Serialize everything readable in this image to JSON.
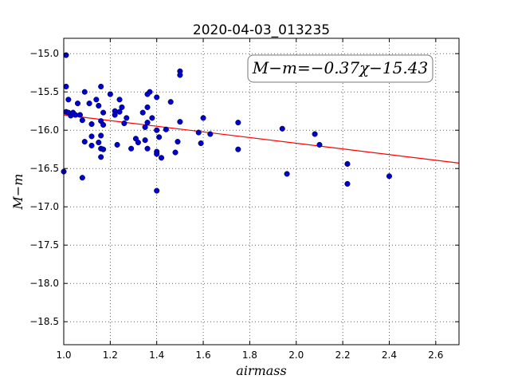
{
  "chart_data": {
    "type": "scatter",
    "title": "2020-04-03_013235",
    "xlabel": "airmass",
    "ylabel": "M−m",
    "xlim": [
      1.0,
      2.7
    ],
    "ylim": [
      -18.8,
      -14.8
    ],
    "y_inverted": true,
    "grid": true,
    "x_ticks": [
      1.0,
      1.2,
      1.4,
      1.6,
      1.8,
      2.0,
      2.2,
      2.4,
      2.6
    ],
    "x_tick_labels": [
      "1.0",
      "1.2",
      "1.4",
      "1.6",
      "1.8",
      "2.0",
      "2.2",
      "2.4",
      "2.6"
    ],
    "y_ticks": [
      -15.0,
      -15.5,
      -16.0,
      -16.5,
      -17.0,
      -17.5,
      -18.0,
      -18.5
    ],
    "y_tick_labels": [
      "−15.0",
      "−15.5",
      "−16.0",
      "−16.5",
      "−17.0",
      "−17.5",
      "−18.0",
      "−18.5"
    ],
    "annotation": "M−m=−0.37χ−15.43",
    "fit": {
      "slope": -0.37,
      "intercept": -15.43,
      "color": "#ff0000"
    },
    "point_color": "#0000cc",
    "points": [
      {
        "x": 1.0,
        "y": -16.54
      },
      {
        "x": 1.01,
        "y": -15.76
      },
      {
        "x": 1.01,
        "y": -15.43
      },
      {
        "x": 1.01,
        "y": -15.02
      },
      {
        "x": 1.02,
        "y": -15.6
      },
      {
        "x": 1.02,
        "y": -15.77
      },
      {
        "x": 1.03,
        "y": -15.81
      },
      {
        "x": 1.04,
        "y": -15.77
      },
      {
        "x": 1.05,
        "y": -15.8
      },
      {
        "x": 1.06,
        "y": -15.65
      },
      {
        "x": 1.07,
        "y": -15.8
      },
      {
        "x": 1.08,
        "y": -15.87
      },
      {
        "x": 1.08,
        "y": -16.62
      },
      {
        "x": 1.09,
        "y": -15.5
      },
      {
        "x": 1.09,
        "y": -16.15
      },
      {
        "x": 1.11,
        "y": -15.65
      },
      {
        "x": 1.12,
        "y": -15.92
      },
      {
        "x": 1.12,
        "y": -16.08
      },
      {
        "x": 1.12,
        "y": -16.2
      },
      {
        "x": 1.14,
        "y": -15.6
      },
      {
        "x": 1.15,
        "y": -15.68
      },
      {
        "x": 1.15,
        "y": -16.16
      },
      {
        "x": 1.16,
        "y": -16.35
      },
      {
        "x": 1.16,
        "y": -15.43
      },
      {
        "x": 1.16,
        "y": -15.88
      },
      {
        "x": 1.16,
        "y": -16.07
      },
      {
        "x": 1.16,
        "y": -16.24
      },
      {
        "x": 1.17,
        "y": -15.93
      },
      {
        "x": 1.17,
        "y": -16.25
      },
      {
        "x": 1.17,
        "y": -15.77
      },
      {
        "x": 1.2,
        "y": -15.53
      },
      {
        "x": 1.22,
        "y": -15.75
      },
      {
        "x": 1.22,
        "y": -15.8
      },
      {
        "x": 1.23,
        "y": -16.19
      },
      {
        "x": 1.24,
        "y": -15.6
      },
      {
        "x": 1.24,
        "y": -15.76
      },
      {
        "x": 1.25,
        "y": -15.7
      },
      {
        "x": 1.26,
        "y": -15.91
      },
      {
        "x": 1.27,
        "y": -15.84
      },
      {
        "x": 1.29,
        "y": -16.24
      },
      {
        "x": 1.31,
        "y": -16.11
      },
      {
        "x": 1.32,
        "y": -16.16
      },
      {
        "x": 1.34,
        "y": -15.77
      },
      {
        "x": 1.35,
        "y": -15.96
      },
      {
        "x": 1.35,
        "y": -16.13
      },
      {
        "x": 1.36,
        "y": -15.53
      },
      {
        "x": 1.36,
        "y": -15.7
      },
      {
        "x": 1.36,
        "y": -15.9
      },
      {
        "x": 1.36,
        "y": -16.24
      },
      {
        "x": 1.37,
        "y": -15.5
      },
      {
        "x": 1.38,
        "y": -15.84
      },
      {
        "x": 1.4,
        "y": -16.79
      },
      {
        "x": 1.4,
        "y": -15.57
      },
      {
        "x": 1.4,
        "y": -16.0
      },
      {
        "x": 1.4,
        "y": -16.28
      },
      {
        "x": 1.4,
        "y": -16.31
      },
      {
        "x": 1.41,
        "y": -16.09
      },
      {
        "x": 1.42,
        "y": -16.36
      },
      {
        "x": 1.44,
        "y": -15.99
      },
      {
        "x": 1.46,
        "y": -15.63
      },
      {
        "x": 1.48,
        "y": -16.29
      },
      {
        "x": 1.49,
        "y": -16.15
      },
      {
        "x": 1.5,
        "y": -15.23
      },
      {
        "x": 1.5,
        "y": -15.28
      },
      {
        "x": 1.5,
        "y": -15.89
      },
      {
        "x": 1.58,
        "y": -16.03
      },
      {
        "x": 1.59,
        "y": -16.17
      },
      {
        "x": 1.6,
        "y": -15.84
      },
      {
        "x": 1.63,
        "y": -16.05
      },
      {
        "x": 1.75,
        "y": -15.9
      },
      {
        "x": 1.75,
        "y": -16.25
      },
      {
        "x": 1.94,
        "y": -15.98
      },
      {
        "x": 1.96,
        "y": -16.57
      },
      {
        "x": 2.08,
        "y": -16.05
      },
      {
        "x": 2.1,
        "y": -16.19
      },
      {
        "x": 2.22,
        "y": -16.44
      },
      {
        "x": 2.22,
        "y": -16.7
      },
      {
        "x": 2.4,
        "y": -16.6
      }
    ]
  }
}
